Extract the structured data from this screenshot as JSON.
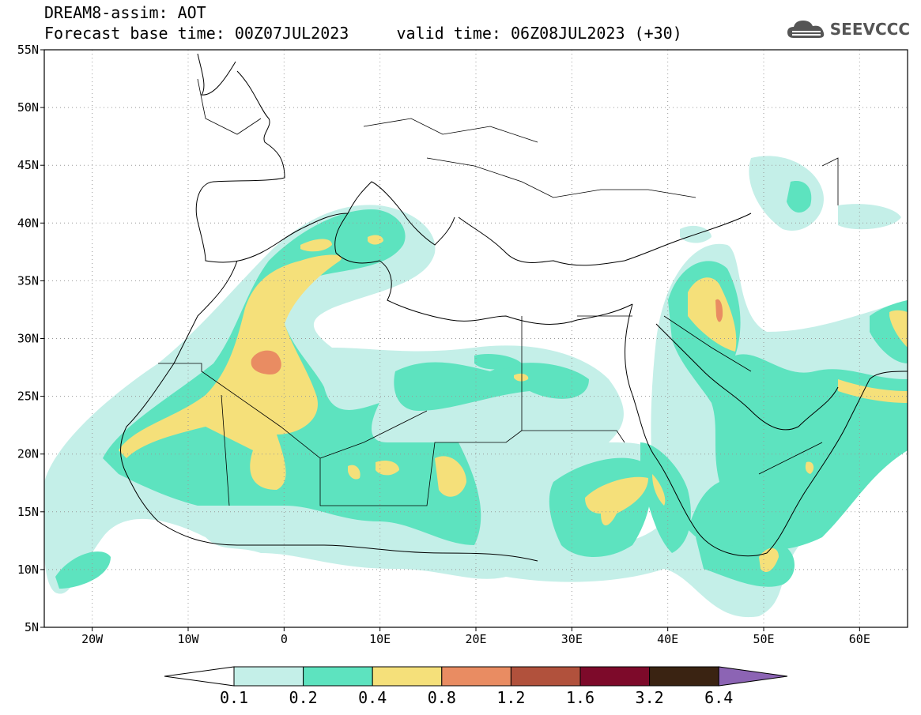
{
  "header": {
    "title_line1": "DREAM8-assim: AOT",
    "title_line2": "Forecast base time: 00Z07JUL2023     valid time: 06Z08JUL2023 (+30)"
  },
  "logo": {
    "text": "SEEVCCC",
    "icon": "cloud-icon"
  },
  "map": {
    "extent": {
      "lon_min": -25,
      "lon_max": 65,
      "lat_min": 5,
      "lat_max": 55
    },
    "lat_ticks": [
      {
        "value": 55,
        "label": "55N"
      },
      {
        "value": 50,
        "label": "50N"
      },
      {
        "value": 45,
        "label": "45N"
      },
      {
        "value": 40,
        "label": "40N"
      },
      {
        "value": 35,
        "label": "35N"
      },
      {
        "value": 30,
        "label": "30N"
      },
      {
        "value": 25,
        "label": "25N"
      },
      {
        "value": 20,
        "label": "20N"
      },
      {
        "value": 15,
        "label": "15N"
      },
      {
        "value": 10,
        "label": "10N"
      },
      {
        "value": 5,
        "label": "5N"
      }
    ],
    "lon_ticks": [
      {
        "value": -20,
        "label": "20W"
      },
      {
        "value": -10,
        "label": "10W"
      },
      {
        "value": 0,
        "label": "0"
      },
      {
        "value": 10,
        "label": "10E"
      },
      {
        "value": 20,
        "label": "20E"
      },
      {
        "value": 30,
        "label": "30E"
      },
      {
        "value": 40,
        "label": "40E"
      },
      {
        "value": 50,
        "label": "50E"
      },
      {
        "value": 60,
        "label": "60E"
      }
    ],
    "gridlines": true
  },
  "colorbar": {
    "labels": [
      "0.1",
      "0.2",
      "0.4",
      "0.8",
      "1.2",
      "1.6",
      "3.2",
      "6.4"
    ],
    "under_color": "#ffffff",
    "over_color": "#8c64b4",
    "colors": [
      "#c4efe8",
      "#5de3bf",
      "#f5e07a",
      "#e98c62",
      "#b1513c",
      "#7d0a2a",
      "#3a2312"
    ]
  }
}
